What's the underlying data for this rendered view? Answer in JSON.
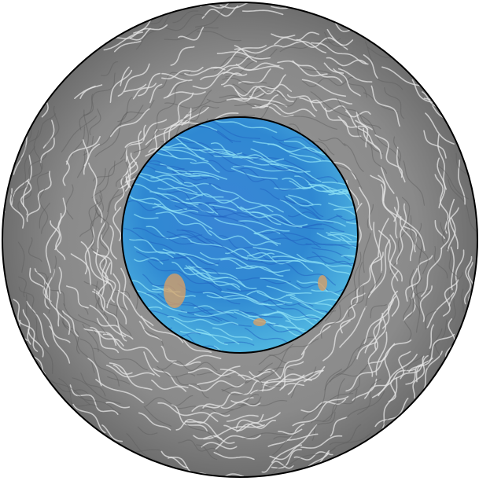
{
  "figure": {
    "description_visible_text": "",
    "colors": {
      "background": "#ffffff",
      "outer_disk_base": "#8f8f8f",
      "outer_streak_light": "#e6e6e6",
      "outer_streak_dark": "#5e5e5e",
      "outline": "#000000",
      "inner_disk_base": "#3f9ad8",
      "inner_streak_light": "#8fe3f5",
      "inner_streak_dark": "#1f5fc0",
      "inner_hotspot": "#e0a060"
    }
  }
}
